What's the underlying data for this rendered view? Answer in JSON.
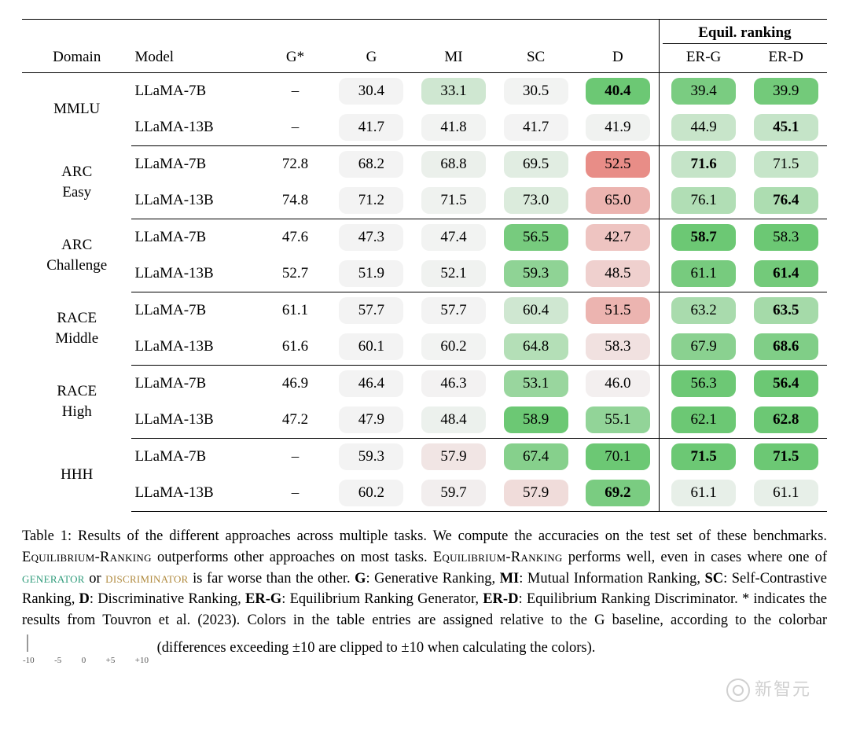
{
  "headers": {
    "domain": "Domain",
    "model": "Model",
    "gstar": "G*",
    "g": "G",
    "mi": "MI",
    "sc": "SC",
    "d": "D",
    "equil_group": "Equil. ranking",
    "erg": "ER-G",
    "erd": "ER-D"
  },
  "color_scale": {
    "min_diff": -10,
    "max_diff": 10,
    "neg_color": "#e88d87",
    "zero_color": "#f3f3f3",
    "pos_color": "#6cc874",
    "tick_labels": [
      "-10",
      "-5",
      "0",
      "+5",
      "+10"
    ]
  },
  "domains": [
    {
      "name": "MMLU",
      "rows": [
        {
          "model": "LLaMA-7B",
          "gstar": "–",
          "g": 30.4,
          "mi": 33.1,
          "sc": 30.5,
          "d": 40.4,
          "erg": 39.4,
          "erd": 39.9,
          "bold": "d"
        },
        {
          "model": "LLaMA-13B",
          "gstar": "–",
          "g": 41.7,
          "mi": 41.8,
          "sc": 41.7,
          "d": 41.9,
          "erg": 44.9,
          "erd": 45.1,
          "bold": "erd"
        }
      ]
    },
    {
      "name": "ARC\nEasy",
      "rows": [
        {
          "model": "LLaMA-7B",
          "gstar": 72.8,
          "g": 68.2,
          "mi": 68.8,
          "sc": 69.5,
          "d": 52.5,
          "erg": 71.6,
          "erd": 71.5,
          "bold": "erg"
        },
        {
          "model": "LLaMA-13B",
          "gstar": 74.8,
          "g": 71.2,
          "mi": 71.5,
          "sc": 73.0,
          "d": 65.0,
          "erg": 76.1,
          "erd": 76.4,
          "bold": "erd"
        }
      ]
    },
    {
      "name": "ARC\nChallenge",
      "rows": [
        {
          "model": "LLaMA-7B",
          "gstar": 47.6,
          "g": 47.3,
          "mi": 47.4,
          "sc": 56.5,
          "d": 42.7,
          "erg": 58.7,
          "erd": 58.3,
          "bold": "erg"
        },
        {
          "model": "LLaMA-13B",
          "gstar": 52.7,
          "g": 51.9,
          "mi": 52.1,
          "sc": 59.3,
          "d": 48.5,
          "erg": 61.1,
          "erd": 61.4,
          "bold": "erd"
        }
      ]
    },
    {
      "name": "RACE\nMiddle",
      "rows": [
        {
          "model": "LLaMA-7B",
          "gstar": 61.1,
          "g": 57.7,
          "mi": 57.7,
          "sc": 60.4,
          "d": 51.5,
          "erg": 63.2,
          "erd": 63.5,
          "bold": "erd"
        },
        {
          "model": "LLaMA-13B",
          "gstar": 61.6,
          "g": 60.1,
          "mi": 60.2,
          "sc": 64.8,
          "d": 58.3,
          "erg": 67.9,
          "erd": 68.6,
          "bold": "erd"
        }
      ]
    },
    {
      "name": "RACE\nHigh",
      "rows": [
        {
          "model": "LLaMA-7B",
          "gstar": 46.9,
          "g": 46.4,
          "mi": 46.3,
          "sc": 53.1,
          "d": 46.0,
          "erg": 56.3,
          "erd": 56.4,
          "bold": "erd"
        },
        {
          "model": "LLaMA-13B",
          "gstar": 47.2,
          "g": 47.9,
          "mi": 48.4,
          "sc": 58.9,
          "d": 55.1,
          "erg": 62.1,
          "erd": 62.8,
          "bold": "erd"
        }
      ]
    },
    {
      "name": "HHH",
      "rows": [
        {
          "model": "LLaMA-7B",
          "gstar": "–",
          "g": 59.3,
          "mi": 57.9,
          "sc": 67.4,
          "d": 70.1,
          "erg": 71.5,
          "erd": 71.5,
          "bold": "erg,erd"
        },
        {
          "model": "LLaMA-13B",
          "gstar": "–",
          "g": 60.2,
          "mi": 59.7,
          "sc": 57.9,
          "d": 69.2,
          "erg": 61.1,
          "erd": 61.1,
          "bold": "d"
        }
      ]
    }
  ],
  "caption": {
    "label": "Table 1:",
    "p1": "Results of the different approaches across multiple tasks. We compute the accuracies on the test set of these benchmarks.",
    "eqrank": "Equilibrium-Ranking",
    "p2": "outperforms other approaches on most tasks.",
    "p3": "performs well, even in cases where one of",
    "gen": "generator",
    "or": "or",
    "disc": "discriminator",
    "p4": "is far worse than the other.",
    "defs": "G: Generative Ranking, MI: Mutual Information Ranking, SC: Self-Contrastive Ranking, D: Discriminative Ranking, ER-G: Equilibrium Ranking Generator, ER-D: Equilibrium Ranking Discriminator. * indicates the results from Touvron et al. (2023). Colors in the table entries are assigned relative to the G baseline, according to the colorbar",
    "p5": "(differences exceeding ±10 are clipped to ±10 when calculating the colors)."
  },
  "watermark": "新智元"
}
